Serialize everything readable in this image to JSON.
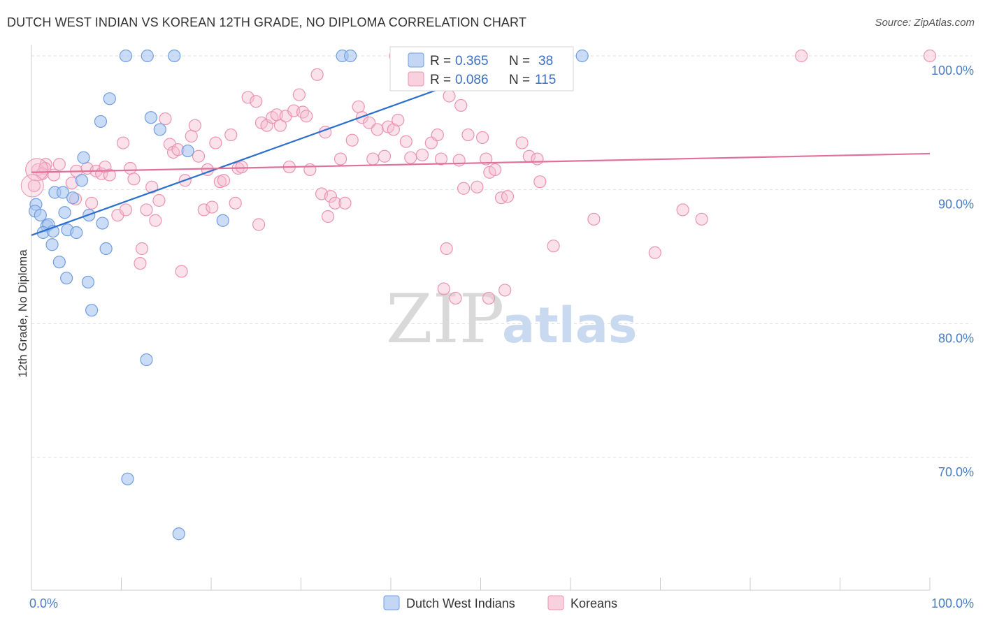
{
  "title": "DUTCH WEST INDIAN VS KOREAN 12TH GRADE, NO DIPLOMA CORRELATION CHART",
  "source": "Source: ZipAtlas.com",
  "watermark": {
    "zip": "ZIP",
    "atlas": "atlas"
  },
  "colors": {
    "dutch_fill": "#a9c6f0",
    "dutch_stroke": "#6f9de0",
    "dutch_line": "#2b6fce",
    "korean_fill": "#f6bcd0",
    "korean_stroke": "#ea93b1",
    "korean_line": "#e0719a",
    "grid": "#dddddd",
    "axis_text": "#4a7cc4"
  },
  "legend": {
    "r_label": "R =",
    "n_label": "N =",
    "dutch": {
      "r": "0.365",
      "n": "38"
    },
    "korean": {
      "r": "0.086",
      "n": "115"
    }
  },
  "chart_data": {
    "type": "scatter",
    "title": "DUTCH WEST INDIAN VS KOREAN 12TH GRADE, NO DIPLOMA CORRELATION CHART",
    "xlabel": "",
    "ylabel": "12th Grade, No Diploma",
    "xlim": [
      0,
      100
    ],
    "ylim": [
      62,
      102
    ],
    "x_tick_labels": [
      "0.0%",
      "100.0%"
    ],
    "y_ticks": [
      70,
      80,
      90,
      100
    ],
    "y_tick_labels": [
      "70.0%",
      "80.0%",
      "90.0%",
      "100.0%"
    ],
    "grid": true,
    "legend_position": "top-center",
    "series": [
      {
        "name": "Dutch West Indians",
        "trend": {
          "x": [
            0,
            55.7
          ],
          "y": [
            86.6,
            100.0
          ]
        },
        "points": [
          [
            10.5,
            100.0
          ],
          [
            12.9,
            100.0
          ],
          [
            15.9,
            100.0
          ],
          [
            34.6,
            100.0
          ],
          [
            35.5,
            100.0
          ],
          [
            61.3,
            100.0
          ],
          [
            8.7,
            96.8
          ],
          [
            13.3,
            95.4
          ],
          [
            7.7,
            95.1
          ],
          [
            14.3,
            94.5
          ],
          [
            5.8,
            92.4
          ],
          [
            17.4,
            92.9
          ],
          [
            5.6,
            90.7
          ],
          [
            2.6,
            89.8
          ],
          [
            3.5,
            89.8
          ],
          [
            4.6,
            89.4
          ],
          [
            0.5,
            88.9
          ],
          [
            0.4,
            88.4
          ],
          [
            1.0,
            88.1
          ],
          [
            3.7,
            88.3
          ],
          [
            6.4,
            88.1
          ],
          [
            21.3,
            87.7
          ],
          [
            1.7,
            87.3
          ],
          [
            1.9,
            87.4
          ],
          [
            7.9,
            87.5
          ],
          [
            1.3,
            86.8
          ],
          [
            2.4,
            86.9
          ],
          [
            4.0,
            87.0
          ],
          [
            5.0,
            86.8
          ],
          [
            2.3,
            85.9
          ],
          [
            8.3,
            85.6
          ],
          [
            3.1,
            84.6
          ],
          [
            3.9,
            83.4
          ],
          [
            6.3,
            83.1
          ],
          [
            6.7,
            81.0
          ],
          [
            12.8,
            77.3
          ],
          [
            10.7,
            68.4
          ],
          [
            16.4,
            64.3
          ]
        ]
      },
      {
        "name": "Koreans",
        "trend": {
          "x": [
            0,
            100
          ],
          "y": [
            91.3,
            92.7
          ]
        },
        "points": [
          [
            0.3,
            90.3
          ],
          [
            0.7,
            91.5
          ],
          [
            1.6,
            91.9
          ],
          [
            1.5,
            91.6
          ],
          [
            1.2,
            91.2
          ],
          [
            2.5,
            91.1
          ],
          [
            3.1,
            91.9
          ],
          [
            4.5,
            90.5
          ],
          [
            4.9,
            89.3
          ],
          [
            5.0,
            91.4
          ],
          [
            6.2,
            91.6
          ],
          [
            6.7,
            89.0
          ],
          [
            7.2,
            91.4
          ],
          [
            7.8,
            91.2
          ],
          [
            8.2,
            91.7
          ],
          [
            8.7,
            91.1
          ],
          [
            9.6,
            88.1
          ],
          [
            10.2,
            93.5
          ],
          [
            10.5,
            88.5
          ],
          [
            11.0,
            91.6
          ],
          [
            11.4,
            90.8
          ],
          [
            12.3,
            85.6
          ],
          [
            12.1,
            84.5
          ],
          [
            12.8,
            88.5
          ],
          [
            13.4,
            90.2
          ],
          [
            13.8,
            87.7
          ],
          [
            14.2,
            89.2
          ],
          [
            14.9,
            95.3
          ],
          [
            15.4,
            93.4
          ],
          [
            15.8,
            92.8
          ],
          [
            16.3,
            93.0
          ],
          [
            16.7,
            83.9
          ],
          [
            17.1,
            90.7
          ],
          [
            17.8,
            94.0
          ],
          [
            18.2,
            94.8
          ],
          [
            18.6,
            92.5
          ],
          [
            19.2,
            88.5
          ],
          [
            19.6,
            91.5
          ],
          [
            20.1,
            88.7
          ],
          [
            20.5,
            93.5
          ],
          [
            21.0,
            90.6
          ],
          [
            21.4,
            90.7
          ],
          [
            22.2,
            94.1
          ],
          [
            22.7,
            89.0
          ],
          [
            23.0,
            91.6
          ],
          [
            23.4,
            91.7
          ],
          [
            24.1,
            96.9
          ],
          [
            25.0,
            96.6
          ],
          [
            25.3,
            87.4
          ],
          [
            25.6,
            95.0
          ],
          [
            26.2,
            94.8
          ],
          [
            26.8,
            95.4
          ],
          [
            27.3,
            95.6
          ],
          [
            27.7,
            94.8
          ],
          [
            28.3,
            95.5
          ],
          [
            28.7,
            91.7
          ],
          [
            29.2,
            95.9
          ],
          [
            29.8,
            97.1
          ],
          [
            30.2,
            95.8
          ],
          [
            30.6,
            95.5
          ],
          [
            31.0,
            91.5
          ],
          [
            31.8,
            98.6
          ],
          [
            32.3,
            89.7
          ],
          [
            32.7,
            94.3
          ],
          [
            33.0,
            88.0
          ],
          [
            33.3,
            89.5
          ],
          [
            33.8,
            89.0
          ],
          [
            34.4,
            92.3
          ],
          [
            34.9,
            89.0
          ],
          [
            35.7,
            93.7
          ],
          [
            36.4,
            96.2
          ],
          [
            36.8,
            95.4
          ],
          [
            37.6,
            95.0
          ],
          [
            38.0,
            92.3
          ],
          [
            38.5,
            94.5
          ],
          [
            39.3,
            92.5
          ],
          [
            39.7,
            94.7
          ],
          [
            40.3,
            94.5
          ],
          [
            40.8,
            95.2
          ],
          [
            41.7,
            93.6
          ],
          [
            42.2,
            92.4
          ],
          [
            43.5,
            92.6
          ],
          [
            44.5,
            93.5
          ],
          [
            45.2,
            94.1
          ],
          [
            45.6,
            92.3
          ],
          [
            46.5,
            97.0
          ],
          [
            46.9,
            98.2
          ],
          [
            47.6,
            92.2
          ],
          [
            47.8,
            96.3
          ],
          [
            48.1,
            90.1
          ],
          [
            48.6,
            94.1
          ],
          [
            49.6,
            90.2
          ],
          [
            50.2,
            93.9
          ],
          [
            50.6,
            92.3
          ],
          [
            51.0,
            91.3
          ],
          [
            51.6,
            91.5
          ],
          [
            52.3,
            89.4
          ],
          [
            53.0,
            89.5
          ],
          [
            52.7,
            82.5
          ],
          [
            54.6,
            93.5
          ],
          [
            55.4,
            92.5
          ],
          [
            56.3,
            92.3
          ],
          [
            56.6,
            90.6
          ],
          [
            45.9,
            82.6
          ],
          [
            47.2,
            81.9
          ],
          [
            50.9,
            81.9
          ],
          [
            46.2,
            85.6
          ],
          [
            58.1,
            85.8
          ],
          [
            62.6,
            87.8
          ],
          [
            69.4,
            85.3
          ],
          [
            72.5,
            88.5
          ],
          [
            74.6,
            87.8
          ],
          [
            85.7,
            100.0
          ],
          [
            100.0,
            100.0
          ],
          [
            40.5,
            100.0
          ]
        ]
      }
    ]
  },
  "y_axis_title": "12th Grade, No Diploma",
  "bottom_legend": {
    "dutch": "Dutch West Indians",
    "korean": "Koreans"
  }
}
